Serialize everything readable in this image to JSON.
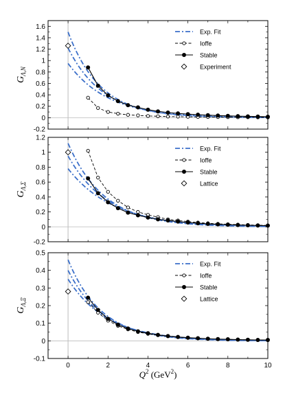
{
  "chart_data": [
    {
      "type": "line",
      "ylabel_main": "G",
      "ylabel_sub": "Λ,N",
      "ylim": [
        -0.2,
        1.7
      ],
      "yticks": [
        -0.2,
        0,
        0.2,
        0.4,
        0.6,
        0.8,
        1,
        1.2,
        1.4,
        1.6
      ],
      "xlim": [
        -1,
        10
      ],
      "legend": {
        "position": "top-right",
        "entries": [
          "Exp. Fit",
          "Ioffe",
          "Stable",
          "Experiment"
        ]
      },
      "expfit": {
        "name": "Exp. Fit",
        "curves": [
          {
            "a": 1.5,
            "b": 0.62
          },
          {
            "a": 1.22,
            "b": 0.57
          },
          {
            "a": 0.95,
            "b": 0.5
          }
        ]
      },
      "ioffe": {
        "name": "Ioffe",
        "x": [
          1,
          1.5,
          2,
          2.5,
          3,
          3.5,
          4,
          4.5,
          5,
          5.5,
          6,
          6.5,
          7,
          7.5,
          8,
          8.5,
          9,
          9.5,
          10
        ],
        "y": [
          0.35,
          0.17,
          0.1,
          0.07,
          0.05,
          0.04,
          0.03,
          0.025,
          0.02,
          0.018,
          0.015,
          0.013,
          0.012,
          0.01,
          0.009,
          0.008,
          0.007,
          0.006,
          0.005
        ]
      },
      "stable": {
        "name": "Stable",
        "x": [
          1,
          1.5,
          2,
          2.5,
          3,
          3.5,
          4,
          4.5,
          5,
          5.5,
          6,
          6.5,
          7,
          7.5,
          8,
          8.5,
          9,
          9.5,
          10
        ],
        "y": [
          0.88,
          0.56,
          0.39,
          0.29,
          0.22,
          0.18,
          0.14,
          0.11,
          0.09,
          0.075,
          0.062,
          0.052,
          0.044,
          0.037,
          0.032,
          0.027,
          0.023,
          0.02,
          0.017
        ]
      },
      "reference": {
        "name": "Experiment",
        "x": [
          0
        ],
        "y": [
          1.26
        ]
      }
    },
    {
      "type": "line",
      "ylabel_main": "G",
      "ylabel_sub": "Λ,Σ",
      "ylim": [
        -0.2,
        1.2
      ],
      "yticks": [
        -0.2,
        0,
        0.2,
        0.4,
        0.6,
        0.8,
        1,
        1.2
      ],
      "xlim": [
        -1,
        10
      ],
      "legend": {
        "position": "top-right",
        "entries": [
          "Exp. Fit",
          "Ioffe",
          "Stable",
          "Lattice"
        ]
      },
      "expfit": {
        "name": "Exp. Fit",
        "curves": [
          {
            "a": 1.12,
            "b": 0.55
          },
          {
            "a": 0.95,
            "b": 0.5
          },
          {
            "a": 0.78,
            "b": 0.44
          }
        ]
      },
      "ioffe": {
        "name": "Ioffe",
        "x": [
          1,
          1.5,
          2,
          2.5,
          3,
          3.5,
          4,
          4.5,
          5,
          5.5,
          6,
          6.5,
          7,
          7.5,
          8,
          8.5,
          9,
          9.5,
          10
        ],
        "y": [
          1.02,
          0.66,
          0.47,
          0.35,
          0.26,
          0.2,
          0.16,
          0.13,
          0.1,
          0.085,
          0.07,
          0.058,
          0.048,
          0.04,
          0.035,
          0.03,
          0.025,
          0.022,
          0.019
        ]
      },
      "stable": {
        "name": "Stable",
        "x": [
          1,
          1.5,
          2,
          2.5,
          3,
          3.5,
          4,
          4.5,
          5,
          5.5,
          6,
          6.5,
          7,
          7.5,
          8,
          8.5,
          9,
          9.5,
          10
        ],
        "y": [
          0.65,
          0.45,
          0.33,
          0.25,
          0.19,
          0.155,
          0.125,
          0.1,
          0.085,
          0.07,
          0.058,
          0.048,
          0.04,
          0.034,
          0.029,
          0.025,
          0.021,
          0.018,
          0.016
        ]
      },
      "reference": {
        "name": "Lattice",
        "x": [
          0
        ],
        "y": [
          1.0
        ]
      }
    },
    {
      "type": "line",
      "ylabel_main": "G",
      "ylabel_sub": "Λ,Ξ",
      "ylim": [
        -0.1,
        0.5
      ],
      "yticks": [
        -0.1,
        0,
        0.1,
        0.2,
        0.3,
        0.4,
        0.5
      ],
      "xlim": [
        -1,
        10
      ],
      "xticks": [
        0,
        2,
        4,
        6,
        8,
        10
      ],
      "xlabel_main": "Q",
      "xlabel_sup": "2",
      "xlabel_unit": "(GeV",
      "xlabel_unit_sup": "2",
      "xlabel_close": ")",
      "legend": {
        "position": "top-right",
        "entries": [
          "Exp. Fit",
          "Ioffe",
          "Stable",
          "Lattice"
        ]
      },
      "expfit": {
        "name": "Exp. Fit",
        "curves": [
          {
            "a": 0.46,
            "b": 0.6
          },
          {
            "a": 0.4,
            "b": 0.56
          },
          {
            "a": 0.35,
            "b": 0.51
          }
        ]
      },
      "ioffe": {
        "name": "Ioffe",
        "x": [
          1,
          1.5,
          2,
          2.5,
          3,
          3.5,
          4,
          4.5,
          5,
          5.5,
          6,
          6.5,
          7,
          7.5,
          8,
          8.5,
          9,
          9.5,
          10
        ],
        "y": [
          0.22,
          0.16,
          0.115,
          0.085,
          0.065,
          0.05,
          0.04,
          0.032,
          0.026,
          0.021,
          0.017,
          0.014,
          0.012,
          0.01,
          0.008,
          0.007,
          0.006,
          0.005,
          0.004
        ]
      },
      "stable": {
        "name": "Stable",
        "x": [
          1,
          1.5,
          2,
          2.5,
          3,
          3.5,
          4,
          4.5,
          5,
          5.5,
          6,
          6.5,
          7,
          7.5,
          8,
          8.5,
          9,
          9.5,
          10
        ],
        "y": [
          0.245,
          0.175,
          0.125,
          0.092,
          0.07,
          0.054,
          0.043,
          0.034,
          0.027,
          0.022,
          0.018,
          0.015,
          0.012,
          0.01,
          0.009,
          0.007,
          0.006,
          0.005,
          0.005
        ]
      },
      "reference": {
        "name": "Lattice",
        "x": [
          0
        ],
        "y": [
          0.28
        ]
      }
    }
  ],
  "colors": {
    "expfit": "#3b6fc9",
    "ioffe": "#000000",
    "stable": "#000000",
    "axis": "#000000",
    "zero_line": "#bbbbbb"
  }
}
